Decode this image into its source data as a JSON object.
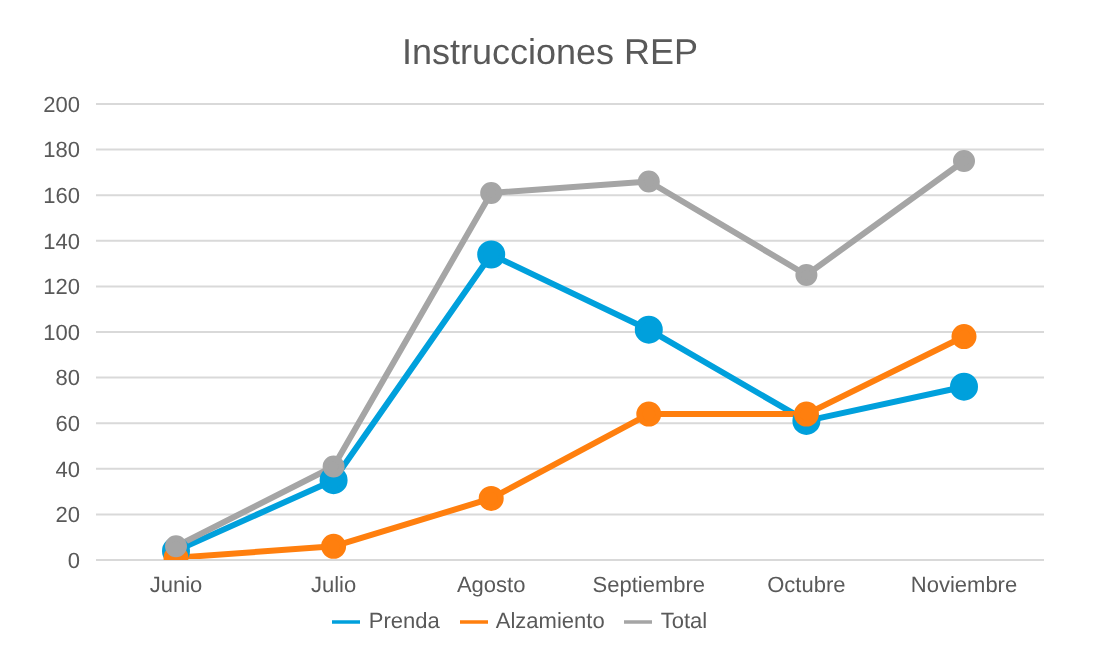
{
  "chart_data": {
    "type": "line",
    "title": "Instrucciones REP",
    "categories": [
      "Junio",
      "Julio",
      "Agosto",
      "Septiembre",
      "Octubre",
      "Noviembre"
    ],
    "series": [
      {
        "name": "Prenda",
        "color": "#00a0dc",
        "values": [
          4,
          35,
          134,
          101,
          61,
          76
        ]
      },
      {
        "name": "Alzamiento",
        "color": "#ff7f0e",
        "values": [
          1,
          6,
          27,
          64,
          64,
          98
        ]
      },
      {
        "name": "Total",
        "color": "#a5a5a5",
        "values": [
          6,
          41,
          161,
          166,
          125,
          175
        ]
      }
    ],
    "ylim": [
      0,
      200
    ],
    "yticks": [
      0,
      20,
      40,
      60,
      80,
      100,
      120,
      140,
      160,
      180,
      200
    ],
    "grid": "y",
    "legend": "bottom",
    "marker": "circle",
    "line_style": "solid"
  }
}
